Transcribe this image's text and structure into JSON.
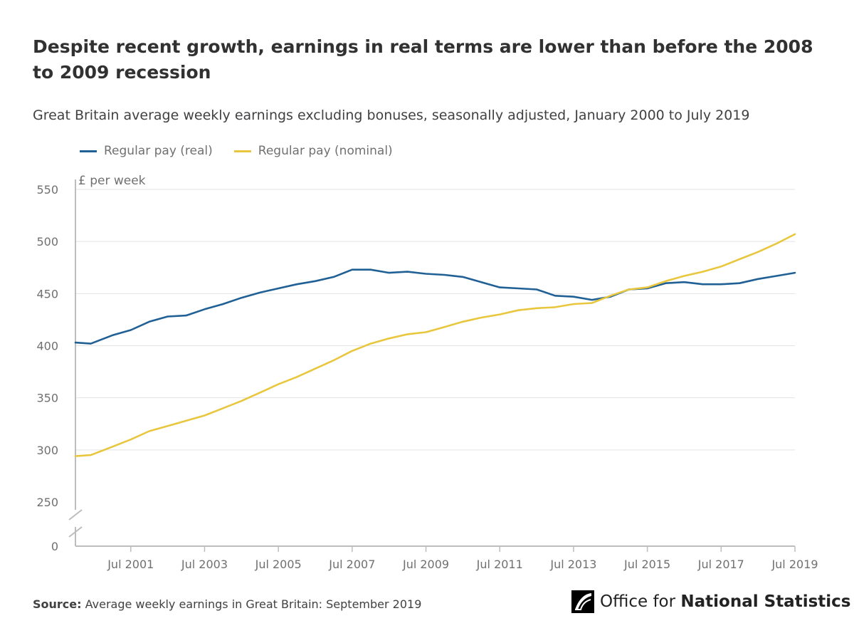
{
  "title": "Despite recent growth, earnings in real terms are lower than before the 2008 to 2009 recession",
  "subtitle": "Great Britain average weekly earnings excluding bonuses, seasonally adjusted, January 2000 to July 2019",
  "source": {
    "label": "Source:",
    "text": "Average weekly earnings in Great Britain: September 2019"
  },
  "logo": {
    "text_regular": "Office for",
    "text_bold": "National Statistics"
  },
  "chart_data": {
    "type": "line",
    "ylabel": "£ per week",
    "ylim": [
      250,
      550
    ],
    "axis_break": true,
    "y_ticks": [
      0,
      250,
      300,
      350,
      400,
      450,
      500,
      550
    ],
    "x_range": [
      "2000-01",
      "2019-07"
    ],
    "x_ticks": [
      "Jul 2001",
      "Jul 2003",
      "Jul 2005",
      "Jul 2007",
      "Jul 2009",
      "Jul 2011",
      "Jul 2013",
      "Jul 2015",
      "Jul 2017",
      "Jul 2019"
    ],
    "grid": true,
    "legend_position": "top-left",
    "series": [
      {
        "name": "Regular pay (real)",
        "color": "#206095",
        "points": [
          [
            "2000-01",
            403
          ],
          [
            "2000-06",
            402
          ],
          [
            "2001-01",
            410
          ],
          [
            "2001-07",
            415
          ],
          [
            "2002-01",
            423
          ],
          [
            "2002-07",
            428
          ],
          [
            "2003-01",
            429
          ],
          [
            "2003-07",
            435
          ],
          [
            "2004-01",
            440
          ],
          [
            "2004-07",
            446
          ],
          [
            "2005-01",
            451
          ],
          [
            "2005-07",
            455
          ],
          [
            "2006-01",
            459
          ],
          [
            "2006-07",
            462
          ],
          [
            "2007-01",
            466
          ],
          [
            "2007-07",
            473
          ],
          [
            "2008-01",
            473
          ],
          [
            "2008-07",
            470
          ],
          [
            "2009-01",
            471
          ],
          [
            "2009-07",
            469
          ],
          [
            "2010-01",
            468
          ],
          [
            "2010-07",
            466
          ],
          [
            "2011-01",
            461
          ],
          [
            "2011-07",
            456
          ],
          [
            "2012-01",
            455
          ],
          [
            "2012-07",
            454
          ],
          [
            "2013-01",
            448
          ],
          [
            "2013-07",
            447
          ],
          [
            "2014-01",
            444
          ],
          [
            "2014-07",
            447
          ],
          [
            "2015-01",
            454
          ],
          [
            "2015-07",
            455
          ],
          [
            "2016-01",
            460
          ],
          [
            "2016-07",
            461
          ],
          [
            "2017-01",
            459
          ],
          [
            "2017-07",
            459
          ],
          [
            "2018-01",
            460
          ],
          [
            "2018-07",
            464
          ],
          [
            "2019-01",
            467
          ],
          [
            "2019-07",
            470
          ]
        ]
      },
      {
        "name": "Regular pay (nominal)",
        "color": "#e8c73e",
        "points": [
          [
            "2000-01",
            294
          ],
          [
            "2000-06",
            295
          ],
          [
            "2001-01",
            303
          ],
          [
            "2001-07",
            310
          ],
          [
            "2002-01",
            318
          ],
          [
            "2002-07",
            323
          ],
          [
            "2003-01",
            328
          ],
          [
            "2003-07",
            333
          ],
          [
            "2004-01",
            340
          ],
          [
            "2004-07",
            347
          ],
          [
            "2005-01",
            355
          ],
          [
            "2005-07",
            363
          ],
          [
            "2006-01",
            370
          ],
          [
            "2006-07",
            378
          ],
          [
            "2007-01",
            386
          ],
          [
            "2007-07",
            395
          ],
          [
            "2008-01",
            402
          ],
          [
            "2008-07",
            407
          ],
          [
            "2009-01",
            411
          ],
          [
            "2009-07",
            413
          ],
          [
            "2010-01",
            418
          ],
          [
            "2010-07",
            423
          ],
          [
            "2011-01",
            427
          ],
          [
            "2011-07",
            430
          ],
          [
            "2012-01",
            434
          ],
          [
            "2012-07",
            436
          ],
          [
            "2013-01",
            437
          ],
          [
            "2013-07",
            440
          ],
          [
            "2014-01",
            441
          ],
          [
            "2014-07",
            448
          ],
          [
            "2015-01",
            454
          ],
          [
            "2015-07",
            456
          ],
          [
            "2016-01",
            462
          ],
          [
            "2016-07",
            467
          ],
          [
            "2017-01",
            471
          ],
          [
            "2017-07",
            476
          ],
          [
            "2018-01",
            483
          ],
          [
            "2018-07",
            490
          ],
          [
            "2019-01",
            498
          ],
          [
            "2019-07",
            507
          ]
        ]
      }
    ]
  }
}
